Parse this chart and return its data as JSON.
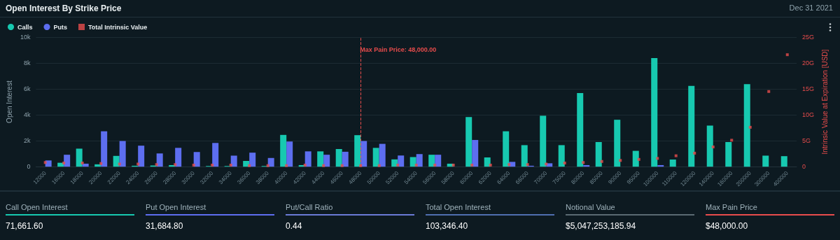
{
  "chart_data": {
    "type": "bar",
    "title": "Open Interest By Strike Price",
    "subtitle": "Dec 31 2021",
    "ylabel": "Open Interest",
    "y2label": "Intrinsic Value at Expiration [USD]",
    "categories": [
      "12000",
      "16000",
      "18000",
      "20000",
      "22000",
      "24000",
      "26000",
      "28000",
      "30000",
      "32000",
      "34000",
      "36000",
      "38000",
      "40000",
      "42000",
      "44000",
      "46000",
      "48000",
      "50000",
      "52000",
      "54000",
      "56000",
      "58000",
      "60000",
      "62000",
      "64000",
      "66000",
      "70000",
      "75000",
      "80000",
      "85000",
      "90000",
      "95000",
      "100000",
      "110000",
      "120000",
      "140000",
      "160000",
      "200000",
      "300000",
      "400000"
    ],
    "series": [
      {
        "name": "Calls",
        "color": "#17c9b0",
        "values": [
          null,
          300,
          1390,
          180,
          830,
          70,
          90,
          120,
          null,
          50,
          50,
          440,
          50,
          2450,
          120,
          1180,
          1360,
          2430,
          1450,
          560,
          740,
          920,
          230,
          3830,
          710,
          2730,
          1660,
          3930,
          1660,
          5680,
          1900,
          3620,
          1220,
          8380,
          550,
          6230,
          3170,
          1900,
          6370,
          850,
          810
        ]
      },
      {
        "name": "Puts",
        "color": "#5d6ef0",
        "values": [
          480,
          920,
          230,
          2730,
          1980,
          1620,
          1020,
          1450,
          1130,
          1830,
          850,
          1080,
          670,
          1940,
          1180,
          920,
          1150,
          1980,
          1760,
          860,
          970,
          920,
          null,
          2060,
          null,
          370,
          70,
          260,
          null,
          120,
          null,
          null,
          null,
          120,
          null,
          null,
          null,
          null,
          null,
          null,
          null
        ]
      },
      {
        "name": "Total Intrinsic Value",
        "type": "scatter",
        "axis": "y2",
        "marker": "square",
        "color": "#e84c4c",
        "values": [
          0.8,
          0.7,
          0.7,
          0.6,
          0.5,
          0.5,
          0.4,
          0.4,
          0.3,
          0.3,
          0.3,
          0.2,
          0.2,
          0.2,
          0.3,
          0.2,
          0.2,
          0.2,
          0.2,
          0.3,
          0.3,
          0.3,
          0.3,
          0.3,
          0.3,
          0.4,
          0.4,
          0.5,
          0.7,
          0.8,
          1.0,
          1.2,
          1.4,
          1.6,
          2.1,
          2.6,
          3.8,
          5.1,
          7.6,
          14.5,
          21.6
        ]
      }
    ],
    "ylim": [
      0,
      10000
    ],
    "yticks": [
      0,
      {
        "value": 2000,
        "label": "2k"
      },
      {
        "value": 4000,
        "label": "4k"
      },
      {
        "value": 6000,
        "label": "6k"
      },
      {
        "value": 8000,
        "label": "8k"
      },
      {
        "value": 10000,
        "label": "10k"
      }
    ],
    "y2lim": [
      0,
      25
    ],
    "y2ticks": [
      0,
      {
        "value": 5,
        "label": "5G"
      },
      {
        "value": 10,
        "label": "10G"
      },
      {
        "value": 15,
        "label": "15G"
      },
      {
        "value": 20,
        "label": "20G"
      },
      {
        "value": 25,
        "label": "25G"
      }
    ],
    "ref_lines": [
      {
        "axis": "x",
        "value": "48000",
        "label": "Max Pain Price: 48,000.00",
        "color": "#e84c4c",
        "line_style": "dashed"
      }
    ],
    "grid": "y",
    "legend": "top left",
    "annotations": [
      "Call Open Interest",
      "71,661.60",
      "Put Open Interest",
      "31,684.80",
      "Put/Call Ratio",
      "0.44",
      "Total Open Interest",
      "103,346.40",
      "Notional Value",
      "$5,047,253,185.94",
      "Max Pain Price",
      "$48,000.00"
    ]
  }
}
